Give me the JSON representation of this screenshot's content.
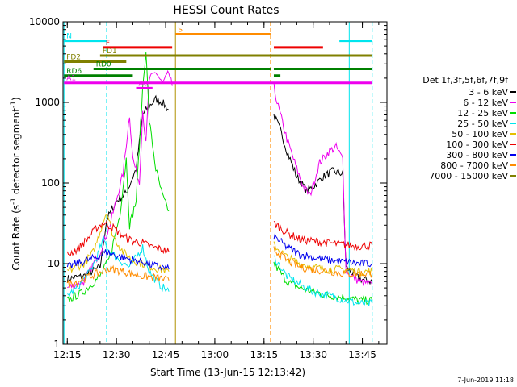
{
  "footer_date": "7-Jun-2019 11:18",
  "chart_data": {
    "type": "line",
    "title": "HESSI Count Rates",
    "xlabel": "Start Time (13-Jun-15 12:13:42)",
    "ylabel": "Count Rate (s^-1 detector segment^-1)",
    "ylabel_parts": {
      "base": "Count Rate (s",
      "sup1": "-1",
      "mid": " detector segment",
      "sup2": "-1",
      "end": ")"
    },
    "y_scale": "log",
    "ylim": [
      1,
      10000
    ],
    "xlim": [
      "12:13:42",
      "13:52:30"
    ],
    "x_ticks": [
      "12:15",
      "12:30",
      "12:45",
      "13:00",
      "13:15",
      "13:30",
      "13:45"
    ],
    "y_ticks": [
      "1",
      "10",
      "100",
      "1000",
      "10000"
    ],
    "legend_title": "Det 1f,3f,5f,6f,7f,9f",
    "legend_position": "right",
    "series": [
      {
        "name": "3 - 6 keV",
        "color": "#000000",
        "points": [
          [
            "12:15",
            6.5
          ],
          [
            "12:20",
            7
          ],
          [
            "12:25",
            9
          ],
          [
            "12:27",
            35
          ],
          [
            "12:30",
            60
          ],
          [
            "12:33",
            75
          ],
          [
            "12:36",
            150
          ],
          [
            "12:38",
            700
          ],
          [
            "12:40",
            900
          ],
          [
            "12:42",
            1100
          ],
          [
            "12:44",
            1000
          ],
          [
            "12:46",
            800
          ],
          [
            "13:18",
            700
          ],
          [
            "13:20",
            450
          ],
          [
            "13:22",
            250
          ],
          [
            "13:25",
            120
          ],
          [
            "13:28",
            80
          ],
          [
            "13:30",
            90
          ],
          [
            "13:33",
            120
          ],
          [
            "13:36",
            140
          ],
          [
            "13:39",
            130
          ],
          [
            "13:40",
            9
          ],
          [
            "13:44",
            6.5
          ],
          [
            "13:48",
            6
          ]
        ]
      },
      {
        "name": "6 - 12 keV",
        "color": "#ee00ee",
        "points": [
          [
            "12:15",
            5
          ],
          [
            "12:20",
            6
          ],
          [
            "12:25",
            14
          ],
          [
            "12:28",
            30
          ],
          [
            "12:32",
            130
          ],
          [
            "12:34",
            700
          ],
          [
            "12:35",
            200
          ],
          [
            "12:37",
            100
          ],
          [
            "12:38",
            800
          ],
          [
            "12:39",
            300
          ],
          [
            "12:40",
            1900
          ],
          [
            "12:42",
            2400
          ],
          [
            "12:44",
            1700
          ],
          [
            "12:46",
            2300
          ],
          [
            "12:47",
            1600
          ],
          [
            "13:18",
            1600
          ],
          [
            "13:19",
            1000
          ],
          [
            "13:22",
            350
          ],
          [
            "13:25",
            150
          ],
          [
            "13:27",
            90
          ],
          [
            "13:29",
            70
          ],
          [
            "13:32",
            180
          ],
          [
            "13:35",
            250
          ],
          [
            "13:37",
            280
          ],
          [
            "13:39",
            200
          ],
          [
            "13:40",
            8
          ],
          [
            "13:44",
            6
          ],
          [
            "13:48",
            5.5
          ]
        ]
      },
      {
        "name": "12 - 25 keV",
        "color": "#00dd00",
        "points": [
          [
            "12:15",
            3.5
          ],
          [
            "12:20",
            4.5
          ],
          [
            "12:25",
            7
          ],
          [
            "12:28",
            12
          ],
          [
            "12:31",
            40
          ],
          [
            "12:33",
            200
          ],
          [
            "12:34",
            30
          ],
          [
            "12:36",
            60
          ],
          [
            "12:38",
            1500
          ],
          [
            "12:39",
            4500
          ],
          [
            "12:40",
            600
          ],
          [
            "12:42",
            150
          ],
          [
            "12:44",
            70
          ],
          [
            "12:45",
            55
          ],
          [
            "12:46",
            45
          ],
          [
            "13:18",
            10
          ],
          [
            "13:22",
            6
          ],
          [
            "13:26",
            5
          ],
          [
            "13:30",
            4.5
          ],
          [
            "13:35",
            4
          ],
          [
            "13:40",
            3.8
          ],
          [
            "13:44",
            3.5
          ],
          [
            "13:48",
            3.5
          ]
        ]
      },
      {
        "name": "25 - 50 keV",
        "color": "#00e5ee",
        "points": [
          [
            "12:15",
            4
          ],
          [
            "12:18",
            5
          ],
          [
            "12:22",
            8
          ],
          [
            "12:24",
            12
          ],
          [
            "12:26",
            20
          ],
          [
            "12:28",
            14
          ],
          [
            "12:31",
            11
          ],
          [
            "12:34",
            9
          ],
          [
            "12:36",
            12
          ],
          [
            "12:38",
            16
          ],
          [
            "12:40",
            8
          ],
          [
            "12:43",
            5.5
          ],
          [
            "12:46",
            4.5
          ],
          [
            "13:18",
            12
          ],
          [
            "13:22",
            7
          ],
          [
            "13:26",
            5.5
          ],
          [
            "13:30",
            4.5
          ],
          [
            "13:35",
            4
          ],
          [
            "13:40",
            3.5
          ],
          [
            "13:44",
            3.2
          ],
          [
            "13:48",
            3.2
          ]
        ]
      },
      {
        "name": "50 - 100 keV",
        "color": "#e5c000",
        "points": [
          [
            "12:15",
            8
          ],
          [
            "12:20",
            10
          ],
          [
            "12:23",
            14
          ],
          [
            "12:25",
            25
          ],
          [
            "12:27",
            45
          ],
          [
            "12:29",
            22
          ],
          [
            "12:32",
            14
          ],
          [
            "12:35",
            11
          ],
          [
            "12:38",
            10
          ],
          [
            "12:41",
            9
          ],
          [
            "12:44",
            8.5
          ],
          [
            "12:46",
            8
          ],
          [
            "13:18",
            17
          ],
          [
            "13:22",
            12
          ],
          [
            "13:26",
            10
          ],
          [
            "13:30",
            9
          ],
          [
            "13:35",
            8.5
          ],
          [
            "13:40",
            8.5
          ],
          [
            "13:44",
            8
          ],
          [
            "13:48",
            8
          ]
        ]
      },
      {
        "name": "100 - 300 keV",
        "color": "#ee0000",
        "points": [
          [
            "12:15",
            13
          ],
          [
            "12:18",
            15
          ],
          [
            "12:21",
            20
          ],
          [
            "12:24",
            28
          ],
          [
            "12:26",
            32
          ],
          [
            "12:29",
            28
          ],
          [
            "12:32",
            22
          ],
          [
            "12:35",
            19
          ],
          [
            "12:38",
            18
          ],
          [
            "12:41",
            16
          ],
          [
            "12:44",
            15
          ],
          [
            "12:46",
            14
          ],
          [
            "13:18",
            32
          ],
          [
            "13:22",
            24
          ],
          [
            "13:26",
            20
          ],
          [
            "13:30",
            19
          ],
          [
            "13:35",
            18
          ],
          [
            "13:40",
            17
          ],
          [
            "13:44",
            16.5
          ],
          [
            "13:48",
            17
          ]
        ]
      },
      {
        "name": "300 - 800 keV",
        "color": "#0000ee",
        "points": [
          [
            "12:15",
            9
          ],
          [
            "12:18",
            10
          ],
          [
            "12:21",
            11
          ],
          [
            "12:24",
            12
          ],
          [
            "12:27",
            14
          ],
          [
            "12:29",
            13
          ],
          [
            "12:32",
            12
          ],
          [
            "12:35",
            11
          ],
          [
            "12:38",
            10.5
          ],
          [
            "12:41",
            9.5
          ],
          [
            "12:44",
            9
          ],
          [
            "12:46",
            8.5
          ],
          [
            "13:18",
            22
          ],
          [
            "13:22",
            16
          ],
          [
            "13:26",
            13
          ],
          [
            "13:30",
            12
          ],
          [
            "13:35",
            11
          ],
          [
            "13:40",
            10.5
          ],
          [
            "13:44",
            10
          ],
          [
            "13:48",
            10
          ]
        ]
      },
      {
        "name": "800 - 7000 keV",
        "color": "#ff8c00",
        "points": [
          [
            "12:15",
            5.5
          ],
          [
            "12:18",
            6
          ],
          [
            "12:21",
            6.8
          ],
          [
            "12:24",
            7.5
          ],
          [
            "12:27",
            8.5
          ],
          [
            "12:29",
            8.5
          ],
          [
            "12:32",
            8
          ],
          [
            "12:35",
            7.5
          ],
          [
            "12:38",
            7
          ],
          [
            "12:41",
            6.8
          ],
          [
            "12:44",
            6.5
          ],
          [
            "12:46",
            6.2
          ],
          [
            "13:18",
            15
          ],
          [
            "13:22",
            11
          ],
          [
            "13:26",
            9
          ],
          [
            "13:30",
            8.5
          ],
          [
            "13:35",
            8
          ],
          [
            "13:40",
            7.5
          ],
          [
            "13:44",
            7.5
          ],
          [
            "13:48",
            7.5
          ]
        ]
      },
      {
        "name": "7000 - 15000 keV",
        "color": "#808000",
        "points": []
      }
    ],
    "attenuator_flags": [
      {
        "label": "N",
        "color": "#00e5ee",
        "y": 5800,
        "segments": [
          [
            "12:14",
            "12:27"
          ],
          [
            "13:38",
            "13:48"
          ]
        ]
      },
      {
        "label": "F",
        "color": "#ee0000",
        "y": 4800,
        "segments": [
          [
            "12:26",
            "12:47"
          ],
          [
            "13:18",
            "13:33"
          ]
        ]
      },
      {
        "label": "S",
        "color": "#ff8c00",
        "y": 7000,
        "segments": [
          [
            "12:48",
            "13:17"
          ]
        ]
      },
      {
        "label": "FD1",
        "color": "#808000",
        "y": 3800,
        "segments": [
          [
            "12:25",
            "13:48"
          ]
        ]
      },
      {
        "label": "FD2",
        "color": "#808000",
        "y": 3200,
        "segments": [
          [
            "12:14",
            "12:33"
          ]
        ]
      },
      {
        "label": "RD0",
        "color": "#008000",
        "y": 2600,
        "segments": [
          [
            "12:23",
            "13:17"
          ],
          [
            "13:18",
            "13:48"
          ]
        ]
      },
      {
        "label": "RD6",
        "color": "#008000",
        "y": 2150,
        "segments": [
          [
            "12:14",
            "12:35"
          ],
          [
            "13:18",
            "13:20"
          ]
        ]
      },
      {
        "label": "A0",
        "color": "#ee00ee",
        "y": 1500,
        "segments": [
          [
            "12:36",
            "12:41"
          ]
        ]
      },
      {
        "label": "A1",
        "color": "#ee00ee",
        "y": 1750,
        "segments": [
          [
            "12:14",
            "13:48"
          ]
        ]
      }
    ],
    "vertical_lines": [
      {
        "x": "12:14",
        "color": "#00e5ee",
        "style": "solid"
      },
      {
        "x": "12:27",
        "color": "#00e5ee",
        "style": "dashed"
      },
      {
        "x": "12:48",
        "color": "#b09000",
        "style": "solid"
      },
      {
        "x": "13:17",
        "color": "#ff8c00",
        "style": "dashed"
      },
      {
        "x": "13:41",
        "color": "#00e5ee",
        "style": "solid"
      },
      {
        "x": "13:48",
        "color": "#00e5ee",
        "style": "dashed"
      }
    ]
  }
}
